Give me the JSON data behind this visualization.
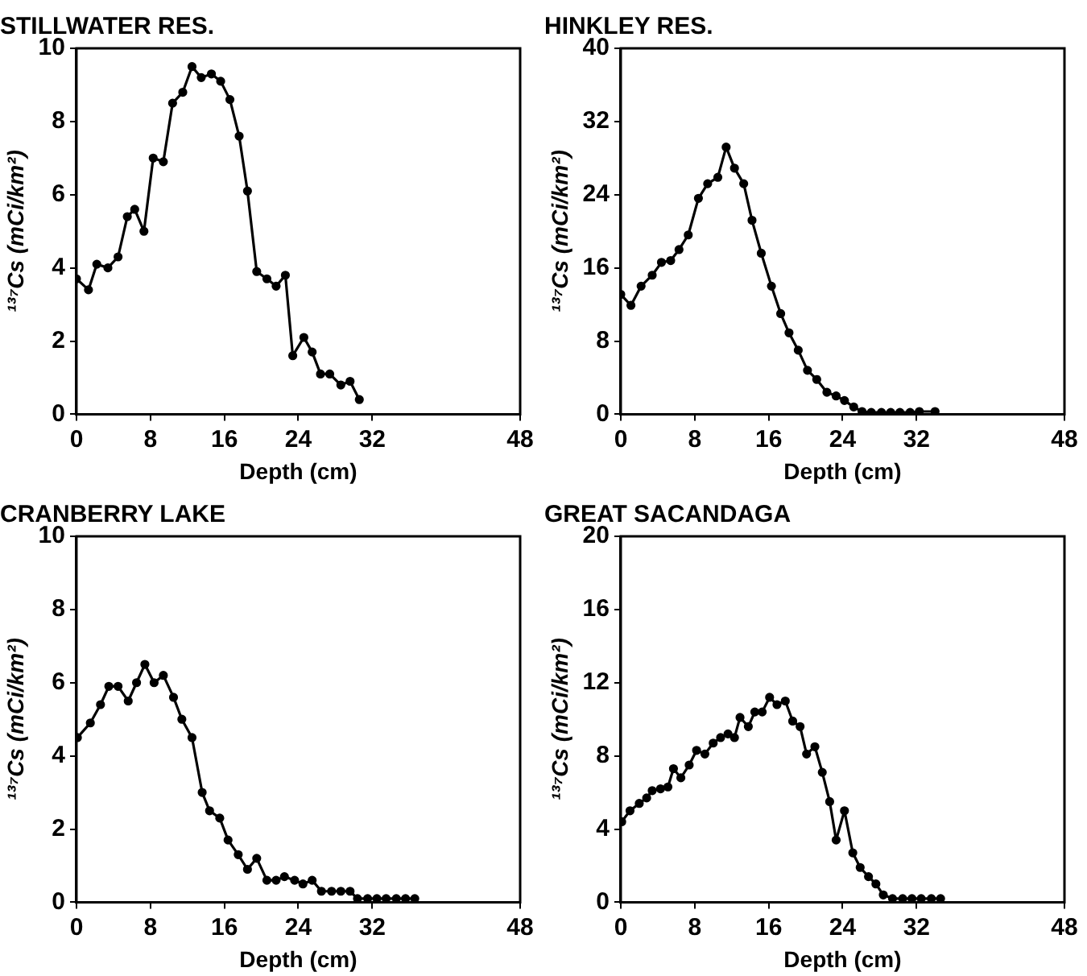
{
  "chart_data": [
    {
      "type": "line",
      "title": "STILLWATER RES.",
      "xlabel": "Depth (cm)",
      "ylabel": "¹³⁷Cs (mCi/km²)",
      "color": "#000000",
      "marker": "circle",
      "xlim": [
        0,
        48
      ],
      "xticks": [
        0,
        8,
        16,
        24,
        32,
        48
      ],
      "ylim": [
        0,
        10
      ],
      "yticks": [
        0,
        2,
        4,
        6,
        8,
        10
      ],
      "x": [
        0,
        1.3,
        2.2,
        3.4,
        4.5,
        5.5,
        6.3,
        7.3,
        8.3,
        9.4,
        10.4,
        11.5,
        12.5,
        13.5,
        14.6,
        15.6,
        16.6,
        17.6,
        18.5,
        19.5,
        20.6,
        21.6,
        22.6,
        23.4,
        24.6,
        25.5,
        26.4,
        27.4,
        28.6,
        29.6,
        30.6
      ],
      "values": [
        3.7,
        3.4,
        4.1,
        4.0,
        4.3,
        5.4,
        5.6,
        5.0,
        7.0,
        6.9,
        8.5,
        8.8,
        9.5,
        9.2,
        9.3,
        9.1,
        8.6,
        7.6,
        6.1,
        3.9,
        3.7,
        3.5,
        3.8,
        1.6,
        2.1,
        1.7,
        1.1,
        1.1,
        0.8,
        0.9,
        0.4
      ]
    },
    {
      "type": "line",
      "title": "HINKLEY RES.",
      "xlabel": "Depth (cm)",
      "ylabel": "¹³⁷Cs (mCi/km²)",
      "color": "#000000",
      "marker": "circle",
      "xlim": [
        0,
        48
      ],
      "xticks": [
        0,
        8,
        16,
        24,
        32,
        48
      ],
      "ylim": [
        0,
        40
      ],
      "yticks": [
        0,
        8,
        16,
        24,
        32,
        40
      ],
      "x": [
        0,
        1.1,
        2.2,
        3.4,
        4.4,
        5.4,
        6.3,
        7.3,
        8.4,
        9.4,
        10.5,
        11.4,
        12.3,
        13.3,
        14.2,
        15.2,
        16.3,
        17.3,
        18.2,
        19.2,
        20.2,
        21.2,
        22.3,
        23.3,
        24.2,
        25.2,
        26.1,
        27.1,
        28.2,
        29.2,
        30.2,
        31.3,
        32.3,
        34.0
      ],
      "values": [
        13.1,
        11.9,
        14.0,
        15.2,
        16.6,
        16.8,
        18.0,
        19.6,
        23.6,
        25.2,
        25.9,
        29.2,
        26.9,
        25.2,
        21.2,
        17.6,
        14.0,
        11.0,
        8.9,
        7.0,
        4.8,
        3.8,
        2.4,
        2.0,
        1.5,
        0.8,
        0.3,
        0.2,
        0.2,
        0.2,
        0.2,
        0.2,
        0.3,
        0.3
      ]
    },
    {
      "type": "line",
      "title": "CRANBERRY LAKE",
      "xlabel": "Depth (cm)",
      "ylabel": "¹³⁷Cs (mCi/km²)",
      "color": "#000000",
      "marker": "circle",
      "xlim": [
        0,
        48
      ],
      "xticks": [
        0,
        8,
        16,
        24,
        32,
        48
      ],
      "ylim": [
        0,
        10
      ],
      "yticks": [
        0,
        2,
        4,
        6,
        8,
        10
      ],
      "x": [
        0.1,
        1.5,
        2.6,
        3.5,
        4.5,
        5.6,
        6.5,
        7.4,
        8.4,
        9.4,
        10.5,
        11.4,
        12.5,
        13.6,
        14.4,
        15.5,
        16.4,
        17.5,
        18.5,
        19.5,
        20.6,
        21.6,
        22.5,
        23.6,
        24.5,
        25.5,
        26.5,
        27.6,
        28.6,
        29.6,
        30.4,
        31.5,
        32.5,
        33.5,
        34.6,
        35.6,
        36.6
      ],
      "values": [
        4.5,
        4.9,
        5.4,
        5.9,
        5.9,
        5.5,
        6.0,
        6.5,
        6.0,
        6.2,
        5.6,
        5.0,
        4.5,
        3.0,
        2.5,
        2.3,
        1.7,
        1.3,
        0.9,
        1.2,
        0.6,
        0.6,
        0.7,
        0.6,
        0.5,
        0.6,
        0.3,
        0.3,
        0.3,
        0.3,
        0.1,
        0.1,
        0.1,
        0.1,
        0.1,
        0.1,
        0.1
      ]
    },
    {
      "type": "line",
      "title": "GREAT SACANDAGA",
      "xlabel": "Depth (cm)",
      "ylabel": "¹³⁷Cs (mCi/km²)",
      "color": "#000000",
      "marker": "circle",
      "xlim": [
        0,
        48
      ],
      "xticks": [
        0,
        8,
        16,
        24,
        32,
        48
      ],
      "ylim": [
        0,
        20
      ],
      "yticks": [
        0,
        4,
        8,
        12,
        16,
        20
      ],
      "x": [
        0.1,
        1.0,
        2.0,
        2.8,
        3.4,
        4.3,
        5.1,
        5.7,
        6.5,
        7.4,
        8.2,
        9.1,
        10.0,
        10.8,
        11.6,
        12.3,
        12.9,
        13.8,
        14.5,
        15.3,
        16.1,
        16.9,
        17.8,
        18.6,
        19.4,
        20.1,
        21.0,
        21.8,
        22.6,
        23.3,
        24.2,
        25.1,
        25.9,
        26.8,
        27.6,
        28.4,
        29.4,
        30.5,
        31.5,
        32.5,
        33.6,
        34.6
      ],
      "values": [
        4.4,
        5.0,
        5.4,
        5.7,
        6.1,
        6.2,
        6.3,
        7.3,
        6.8,
        7.5,
        8.3,
        8.1,
        8.7,
        9.0,
        9.2,
        9.0,
        10.1,
        9.6,
        10.4,
        10.4,
        11.2,
        10.8,
        11.0,
        9.9,
        9.6,
        8.1,
        8.5,
        7.1,
        5.5,
        3.4,
        5.0,
        2.7,
        1.9,
        1.4,
        1.0,
        0.4,
        0.2,
        0.2,
        0.2,
        0.2,
        0.2,
        0.2
      ]
    }
  ]
}
